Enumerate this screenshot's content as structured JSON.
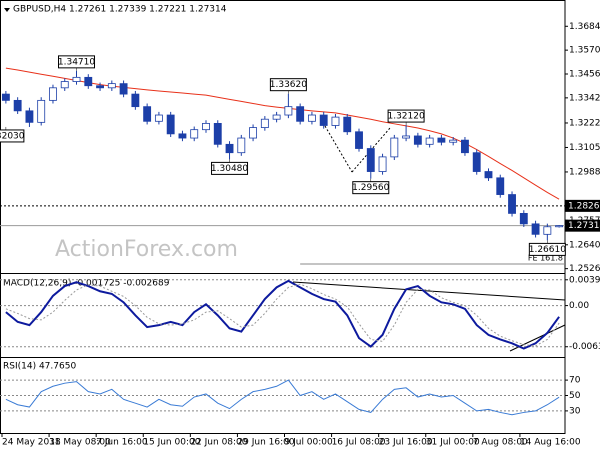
{
  "chart_data": [
    {
      "type": "candlestick",
      "title": "GBPUSD,H4  1.27261 1.27339 1.27221 1.27314",
      "watermark": "ActionForex.com",
      "categories": [
        "24 May 2018",
        null,
        null,
        null,
        "31 May 08:00",
        null,
        null,
        null,
        "7 Jun 16:00",
        null,
        null,
        null,
        "15 Jun 00:00",
        null,
        null,
        null,
        "22 Jun 08:00",
        null,
        null,
        null,
        "29 Jun 16:00",
        null,
        null,
        null,
        "9 Jul 00:00",
        null,
        null,
        null,
        "16 Jul 08:00",
        null,
        null,
        null,
        "23 Jul 16:00",
        null,
        null,
        null,
        "31 Jul 00:00",
        null,
        null,
        null,
        "7 Aug 08:00",
        null,
        null,
        null,
        "14 Aug 16:00",
        null,
        null,
        null
      ],
      "open": [
        1.336,
        1.333,
        1.328,
        1.3225,
        1.333,
        1.339,
        1.342,
        1.344,
        1.34,
        1.339,
        1.341,
        1.336,
        1.33,
        1.323,
        1.326,
        1.317,
        1.315,
        1.319,
        1.322,
        1.312,
        1.308,
        1.315,
        1.32,
        1.324,
        1.326,
        1.33,
        1.323,
        1.326,
        1.321,
        1.325,
        1.318,
        1.31,
        1.299,
        1.306,
        1.315,
        1.316,
        1.312,
        1.315,
        1.313,
        1.314,
        1.308,
        1.299,
        1.296,
        1.288,
        1.279,
        1.274,
        1.269,
        1.27261
      ],
      "high": [
        1.3375,
        1.3345,
        1.3295,
        1.3345,
        1.3405,
        1.3435,
        1.3471,
        1.3455,
        1.3415,
        1.3425,
        1.3425,
        1.3375,
        1.3315,
        1.3275,
        1.3275,
        1.3185,
        1.3205,
        1.3235,
        1.3235,
        1.3135,
        1.3165,
        1.3215,
        1.3255,
        1.3275,
        1.3362,
        1.3315,
        1.3275,
        1.3275,
        1.3265,
        1.3265,
        1.3195,
        1.3115,
        1.3075,
        1.3165,
        1.3212,
        1.3175,
        1.3165,
        1.3165,
        1.3155,
        1.3155,
        1.3095,
        1.3005,
        1.2975,
        1.2895,
        1.2805,
        1.2755,
        1.2741,
        1.27339
      ],
      "low": [
        1.3315,
        1.3265,
        1.3203,
        1.321,
        1.3315,
        1.3375,
        1.3405,
        1.3385,
        1.3375,
        1.3375,
        1.3345,
        1.3285,
        1.3215,
        1.3215,
        1.3155,
        1.3135,
        1.3135,
        1.3175,
        1.3105,
        1.3048,
        1.3065,
        1.3135,
        1.3185,
        1.3225,
        1.3245,
        1.3215,
        1.3215,
        1.3195,
        1.3195,
        1.3165,
        1.3085,
        1.2956,
        1.2975,
        1.3045,
        1.3135,
        1.3105,
        1.3105,
        1.3115,
        1.3115,
        1.3065,
        1.2975,
        1.2945,
        1.2865,
        1.2775,
        1.2725,
        1.2675,
        1.2661,
        1.27221
      ],
      "close": [
        1.333,
        1.328,
        1.3225,
        1.333,
        1.339,
        1.342,
        1.344,
        1.34,
        1.339,
        1.341,
        1.336,
        1.33,
        1.323,
        1.326,
        1.317,
        1.315,
        1.319,
        1.322,
        1.312,
        1.308,
        1.315,
        1.32,
        1.324,
        1.326,
        1.33,
        1.323,
        1.326,
        1.321,
        1.325,
        1.318,
        1.31,
        1.299,
        1.306,
        1.315,
        1.316,
        1.312,
        1.315,
        1.313,
        1.314,
        1.308,
        1.299,
        1.296,
        1.288,
        1.279,
        1.274,
        1.269,
        1.27261,
        1.27314
      ],
      "color": "#1c3fa8",
      "series": [
        {
          "color": "#e8311a",
          "values": [
            1.3484,
            1.3475,
            1.3465,
            1.3455,
            1.3445,
            1.3435,
            1.3425,
            1.3415,
            1.3405,
            1.3398,
            1.3392,
            1.3386,
            1.338,
            1.3375,
            1.337,
            1.3365,
            1.336,
            1.3355,
            1.3345,
            1.3335,
            1.3325,
            1.3315,
            1.3305,
            1.3298,
            1.3292,
            1.3286,
            1.328,
            1.3275,
            1.327,
            1.326,
            1.325,
            1.324,
            1.3228,
            1.3218,
            1.3208,
            1.3198,
            1.3185,
            1.317,
            1.315,
            1.3125,
            1.3095,
            1.3062,
            1.3028,
            1.2995,
            1.296,
            1.2925,
            1.289,
            1.2858
          ]
        }
      ],
      "ylim": [
        1.251,
        1.38
      ],
      "yticks": [
        {
          "value": 1.3684,
          "label": "1.36840"
        },
        {
          "value": 1.357,
          "label": "1.35700"
        },
        {
          "value": 1.3456,
          "label": "1.34560"
        },
        {
          "value": 1.3342,
          "label": "1.33420"
        },
        {
          "value": 1.3222,
          "label": "1.32220"
        },
        {
          "value": 1.3105,
          "label": "1.31050"
        },
        {
          "value": 1.2988,
          "label": "1.29880"
        },
        {
          "value": 1.2757,
          "label": "1.27570"
        },
        {
          "value": 1.264,
          "label": "1.26400"
        },
        {
          "value": 1.2526,
          "label": "1.25260"
        }
      ],
      "hlines": [
        {
          "value": 1.2826,
          "label": "1.28260",
          "style": "dotted"
        },
        {
          "value": 1.27314,
          "label": "1.27314",
          "style": "solid"
        }
      ],
      "fe_line": {
        "value": 1.2548,
        "label": "FE 161.8"
      },
      "annotations": [
        {
          "x": 0,
          "value": 1.3203,
          "label": "1.32030",
          "side": "below"
        },
        {
          "x": 6,
          "value": 1.3471,
          "label": "1.34710",
          "side": "above"
        },
        {
          "x": 19,
          "value": 1.3048,
          "label": "1.30480",
          "side": "below"
        },
        {
          "x": 24,
          "value": 1.3362,
          "label": "1.33620",
          "side": "above"
        },
        {
          "x": 31,
          "value": 1.2956,
          "label": "1.29560",
          "side": "below"
        },
        {
          "x": 34,
          "value": 1.3212,
          "label": "1.32120",
          "side": "above"
        },
        {
          "x": 46,
          "value": 1.2661,
          "label": "1.26610",
          "side": "below"
        }
      ]
    },
    {
      "type": "line",
      "title": "MACD(12,26,9) -0.001725 -0.002689",
      "series": [
        {
          "color": "#0d1a9e",
          "style": "thick",
          "values": [
            -0.001,
            -0.0025,
            -0.003,
            -0.001,
            0.0015,
            0.003,
            0.0036,
            0.003,
            0.0022,
            0.0018,
            0.0005,
            -0.0015,
            -0.0033,
            -0.003,
            -0.0025,
            -0.003,
            -0.001,
            0.0002,
            -0.0015,
            -0.0035,
            -0.004,
            -0.0015,
            0.001,
            0.0028,
            0.0038,
            0.0028,
            0.0018,
            0.001,
            0.0006,
            -0.0015,
            -0.005,
            -0.0063,
            -0.0045,
            -0.0005,
            0.0025,
            0.003,
            0.0015,
            0.0005,
            0.0002,
            -0.0005,
            -0.003,
            -0.0045,
            -0.0052,
            -0.0058,
            -0.0066,
            -0.0058,
            -0.0042,
            -0.001725
          ]
        },
        {
          "color": "#999999",
          "style": "dotted",
          "values": [
            -0.0005,
            -0.0012,
            -0.002,
            -0.0022,
            -0.001,
            0.0008,
            0.0024,
            0.0032,
            0.003,
            0.0022,
            0.0014,
            0.0,
            -0.0018,
            -0.0028,
            -0.003,
            -0.0028,
            -0.0022,
            -0.001,
            -0.0008,
            -0.002,
            -0.0033,
            -0.003,
            -0.0012,
            0.001,
            0.0028,
            0.0033,
            0.0026,
            0.0017,
            0.001,
            -0.0002,
            -0.0028,
            -0.0052,
            -0.0055,
            -0.003,
            0.0005,
            0.0025,
            0.0024,
            0.0012,
            0.0005,
            0.0,
            -0.0015,
            -0.0035,
            -0.0047,
            -0.0054,
            -0.006,
            -0.0062,
            -0.0052,
            -0.002689
          ]
        }
      ],
      "ylim": [
        -0.0079,
        0.0047
      ],
      "yticks": [
        {
          "value": 0.003964,
          "label": "0.003964"
        },
        {
          "value": 0,
          "label": "0.00"
        },
        {
          "value": -0.006324,
          "label": "-0.006324"
        }
      ],
      "grid": true
    },
    {
      "type": "line",
      "title": "RSI(14) 47.7650",
      "series": [
        {
          "color": "#3a7bd5",
          "style": "thin",
          "values": [
            45,
            38,
            35,
            55,
            62,
            66,
            68,
            55,
            52,
            58,
            45,
            40,
            35,
            45,
            38,
            36,
            48,
            52,
            40,
            33,
            45,
            55,
            58,
            62,
            70,
            50,
            55,
            45,
            52,
            42,
            32,
            28,
            45,
            58,
            60,
            48,
            52,
            48,
            50,
            40,
            30,
            32,
            28,
            25,
            28,
            30,
            38,
            47.765
          ]
        }
      ],
      "ylim": [
        0,
        100
      ],
      "yticks": [
        70,
        50,
        30
      ],
      "grid": true
    }
  ]
}
